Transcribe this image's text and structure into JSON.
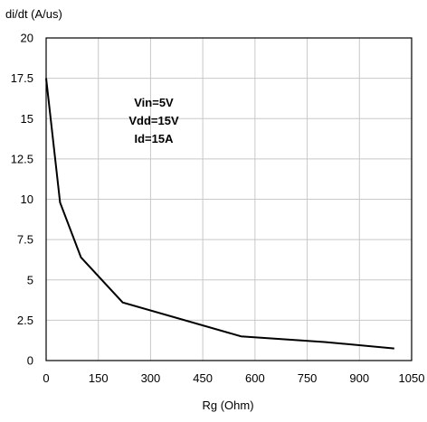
{
  "chart_data": {
    "type": "line",
    "ylabel": "di/dt (A/us)",
    "xlabel": "Rg (Ohm)",
    "xlim": [
      0,
      1050
    ],
    "ylim": [
      0,
      20
    ],
    "x_ticks": [
      0,
      150,
      300,
      450,
      600,
      750,
      900,
      1050
    ],
    "x_tick_labels": [
      "0",
      "150",
      "300",
      "450",
      "600",
      "750",
      "900",
      "1050"
    ],
    "y_ticks": [
      0,
      2.5,
      5,
      7.5,
      10,
      12.5,
      15,
      17.5,
      20
    ],
    "y_tick_labels": [
      "0",
      "2.5",
      "5",
      "7.5",
      "10",
      "12.5",
      "15",
      "17.5",
      "20"
    ],
    "grid": true,
    "annotations": [
      "Vin=5V",
      "Vdd=15V",
      "Id=15A"
    ],
    "series": [
      {
        "x": [
          0,
          40,
          100,
          220,
          560,
          800,
          1000
        ],
        "y": [
          17.5,
          9.8,
          6.4,
          3.6,
          1.5,
          1.15,
          0.75
        ]
      }
    ],
    "colors": {
      "line": "#000000",
      "grid": "#c8c8c8",
      "frame": "#000000"
    }
  }
}
